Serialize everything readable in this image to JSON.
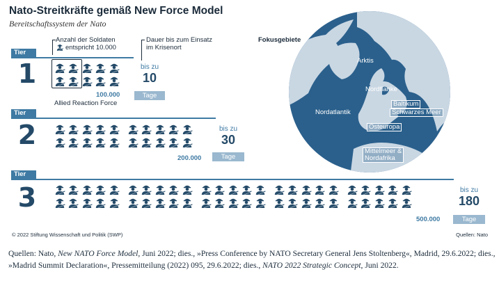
{
  "header": {
    "title": "Nato-Streitkräfte gemäß New Force Model",
    "subtitle": "Bereitschaftssystem der Nato"
  },
  "legend": {
    "soldiers_line1": "Anzahl der Soldaten",
    "soldiers_line2": "entspricht 10.000",
    "duration_line1": "Dauer bis zum Einsatz",
    "duration_line2": "im Krisenort",
    "arf_label": "Allied Reaction Force"
  },
  "chart_data": {
    "type": "table",
    "unit_per_icon": 10000,
    "tiers": [
      {
        "tab": "Tier",
        "tier": "1",
        "icons": 10,
        "soldiers_label": "100.000",
        "soldiers": 100000,
        "days_prefix": "bis zu",
        "days": "10",
        "days_unit": "Tage"
      },
      {
        "tab": "Tier",
        "tier": "2",
        "icons": 20,
        "soldiers_label": "200.000",
        "soldiers": 200000,
        "days_prefix": "bis zu",
        "days": "30",
        "days_unit": "Tage"
      },
      {
        "tab": "Tier",
        "tier": "3",
        "icons": 50,
        "soldiers_label": "500.000",
        "soldiers": 500000,
        "days_prefix": "bis zu",
        "days": "180",
        "days_unit": "Tage"
      }
    ]
  },
  "map": {
    "title": "Fokusgebiete",
    "regions": [
      "Arktis",
      "Nordflanke",
      "Nordatlantik",
      "Baltikum",
      "Schwarzes Meer",
      "Osteuropa",
      "Mittelmeer &",
      "Nordafrika"
    ],
    "colors": {
      "water": "#2b608c",
      "land": "#c9d7e3",
      "ocean_outer": "#3e7aa3"
    }
  },
  "footer": {
    "copyright": "© 2022 Stiftung Wissenschaft und Politik (SWP)",
    "source_short": "Quellen: Nato",
    "sources_parts": [
      "Quellen: Nato, ",
      "New NATO Force Model",
      ", Juni 2022; dies., »Press Conference by NATO Secretary General Jens Stoltenberg«, Madrid, 29.6.2022; dies., »Madrid Summit Declaration«, Pressemitteilung (2022) 095, 29.6.2022; dies., ",
      "NATO 2022 Strategic Concept",
      ", Juni 2022."
    ]
  },
  "colors": {
    "accent": "#3e7aa3",
    "dark": "#244a68",
    "light": "#9ab8cf"
  }
}
